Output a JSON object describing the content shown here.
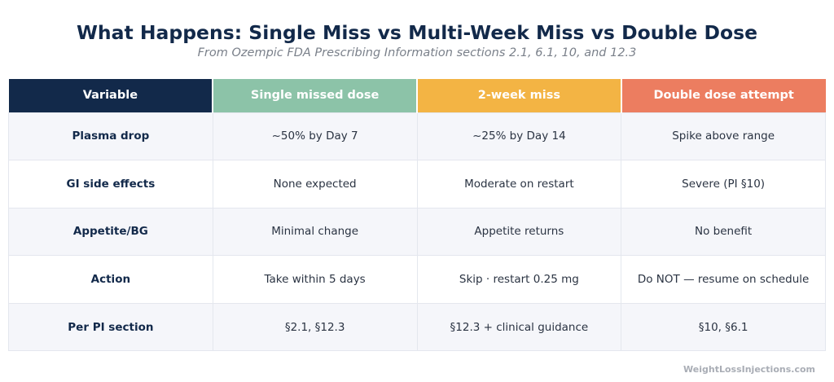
{
  "title": "What Happens: Single Miss vs Multi-Week Miss vs Double Dose",
  "subtitle": "From Ozempic FDA Prescribing Information sections 2.1, 6.1, 10, and 12.3",
  "colors": {
    "variable_header": "#12294a",
    "single_header": "#8cc3a8",
    "two_week_header": "#f3b444",
    "double_header": "#ec7d60"
  },
  "table": {
    "headers": [
      "Variable",
      "Single missed dose",
      "2-week miss",
      "Double dose attempt"
    ],
    "rows": [
      [
        "Plasma drop",
        "~50% by Day 7",
        "~25% by Day 14",
        "Spike above range"
      ],
      [
        "GI side effects",
        "None expected",
        "Moderate on restart",
        "Severe (PI §10)"
      ],
      [
        "Appetite/BG",
        "Minimal change",
        "Appetite returns",
        "No benefit"
      ],
      [
        "Action",
        "Take within 5 days",
        "Skip · restart 0.25 mg",
        "Do NOT — resume on schedule"
      ],
      [
        "Per PI section",
        "§2.1, §12.3",
        "§12.3 + clinical guidance",
        "§10, §6.1"
      ]
    ]
  },
  "footer": "WeightLossInjections.com"
}
